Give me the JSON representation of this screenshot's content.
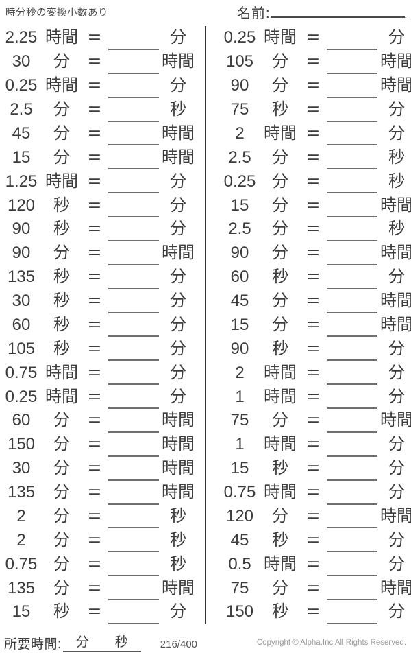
{
  "page": {
    "title": "時分秒の変換小数あり",
    "name_label": "名前:",
    "name_line_end": "."
  },
  "equals": "=",
  "problems": {
    "left": [
      {
        "value": "2.25",
        "from": "時間",
        "to": "分"
      },
      {
        "value": "30",
        "from": "分",
        "to": "時間"
      },
      {
        "value": "0.25",
        "from": "時間",
        "to": "分"
      },
      {
        "value": "2.5",
        "from": "分",
        "to": "秒"
      },
      {
        "value": "45",
        "from": "分",
        "to": "時間"
      },
      {
        "value": "15",
        "from": "分",
        "to": "時間"
      },
      {
        "value": "1.25",
        "from": "時間",
        "to": "分"
      },
      {
        "value": "120",
        "from": "秒",
        "to": "分"
      },
      {
        "value": "90",
        "from": "秒",
        "to": "分"
      },
      {
        "value": "90",
        "from": "分",
        "to": "時間"
      },
      {
        "value": "135",
        "from": "秒",
        "to": "分"
      },
      {
        "value": "30",
        "from": "秒",
        "to": "分"
      },
      {
        "value": "60",
        "from": "秒",
        "to": "分"
      },
      {
        "value": "105",
        "from": "秒",
        "to": "分"
      },
      {
        "value": "0.75",
        "from": "時間",
        "to": "分"
      },
      {
        "value": "0.25",
        "from": "時間",
        "to": "分"
      },
      {
        "value": "60",
        "from": "分",
        "to": "時間"
      },
      {
        "value": "150",
        "from": "分",
        "to": "時間"
      },
      {
        "value": "30",
        "from": "分",
        "to": "時間"
      },
      {
        "value": "135",
        "from": "分",
        "to": "時間"
      },
      {
        "value": "2",
        "from": "分",
        "to": "秒"
      },
      {
        "value": "2",
        "from": "分",
        "to": "秒"
      },
      {
        "value": "0.75",
        "from": "分",
        "to": "秒"
      },
      {
        "value": "135",
        "from": "分",
        "to": "時間"
      },
      {
        "value": "15",
        "from": "秒",
        "to": "分"
      }
    ],
    "right": [
      {
        "value": "0.25",
        "from": "時間",
        "to": "分"
      },
      {
        "value": "105",
        "from": "分",
        "to": "時間"
      },
      {
        "value": "90",
        "from": "分",
        "to": "時間"
      },
      {
        "value": "75",
        "from": "秒",
        "to": "分"
      },
      {
        "value": "2",
        "from": "時間",
        "to": "分"
      },
      {
        "value": "2.5",
        "from": "分",
        "to": "秒"
      },
      {
        "value": "0.25",
        "from": "分",
        "to": "秒"
      },
      {
        "value": "15",
        "from": "分",
        "to": "時間"
      },
      {
        "value": "2.5",
        "from": "分",
        "to": "秒"
      },
      {
        "value": "90",
        "from": "分",
        "to": "時間"
      },
      {
        "value": "60",
        "from": "秒",
        "to": "分"
      },
      {
        "value": "45",
        "from": "分",
        "to": "時間"
      },
      {
        "value": "15",
        "from": "分",
        "to": "時間"
      },
      {
        "value": "90",
        "from": "秒",
        "to": "分"
      },
      {
        "value": "2",
        "from": "時間",
        "to": "分"
      },
      {
        "value": "1",
        "from": "時間",
        "to": "分"
      },
      {
        "value": "75",
        "from": "分",
        "to": "時間"
      },
      {
        "value": "1",
        "from": "時間",
        "to": "分"
      },
      {
        "value": "15",
        "from": "秒",
        "to": "分"
      },
      {
        "value": "0.75",
        "from": "時間",
        "to": "分"
      },
      {
        "value": "120",
        "from": "分",
        "to": "時間"
      },
      {
        "value": "45",
        "from": "秒",
        "to": "分"
      },
      {
        "value": "0.5",
        "from": "時間",
        "to": "分"
      },
      {
        "value": "75",
        "from": "分",
        "to": "時間"
      },
      {
        "value": "150",
        "from": "秒",
        "to": "分"
      }
    ]
  },
  "footer": {
    "time_label": "所要時間:",
    "minutes_unit": "分",
    "seconds_unit": "秒",
    "progress": "216/400",
    "copyright": "Copyright © Alpha.Inc All Rights Reserved."
  }
}
